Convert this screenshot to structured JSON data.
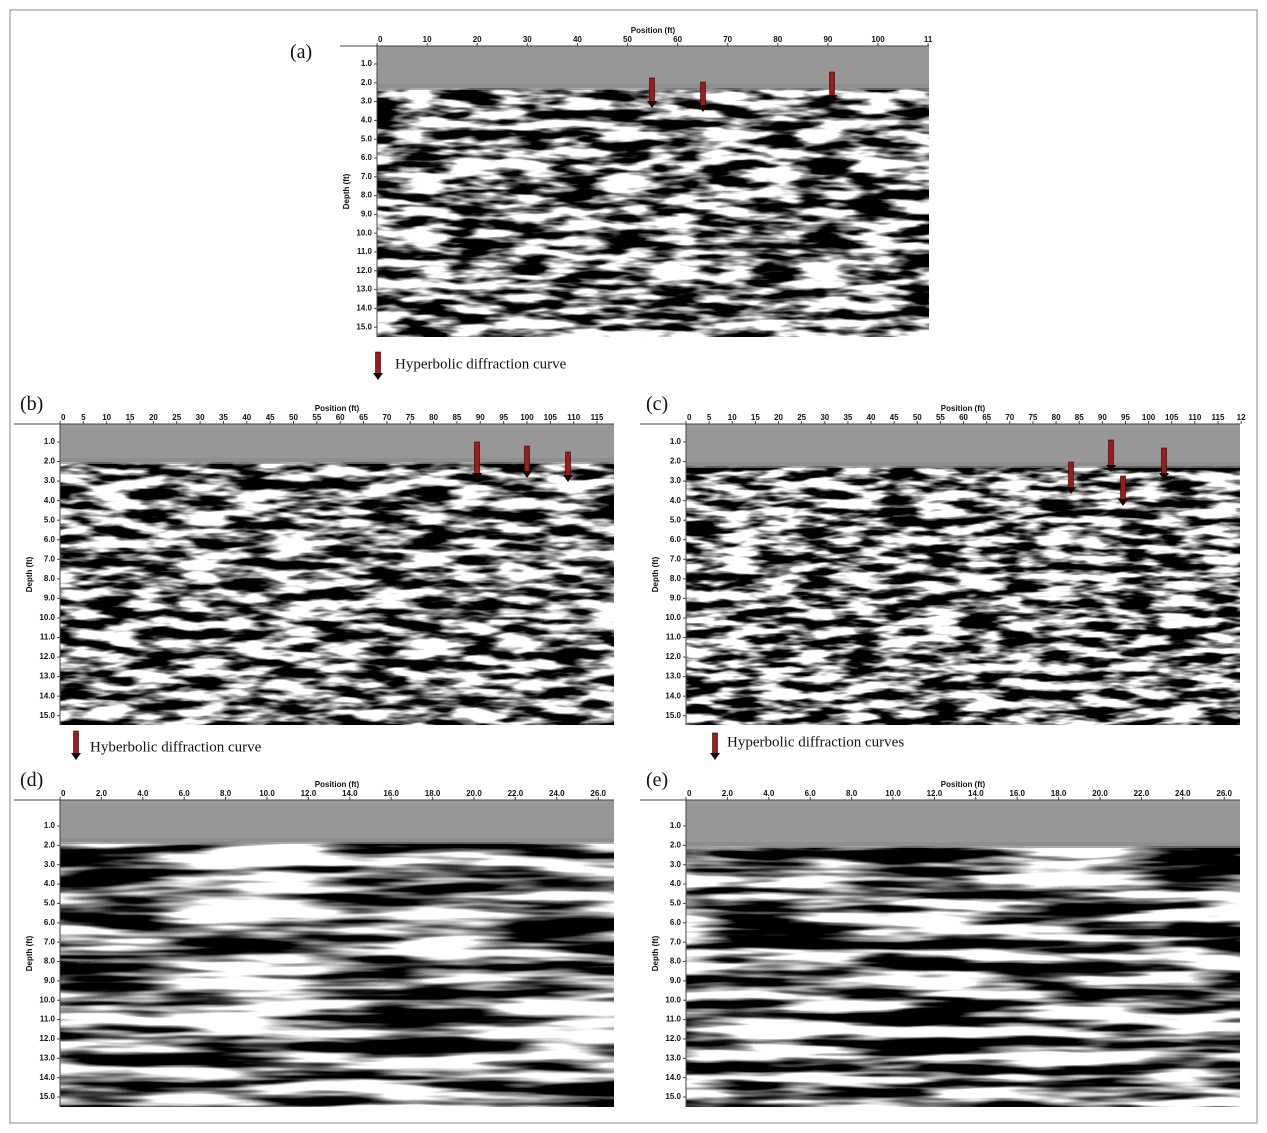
{
  "panels": [
    {
      "label": "(a)",
      "x_axis_title": "Position (ft)",
      "y_axis_title": "Depth (ft)",
      "x_ticks": [
        "0",
        "10",
        "20",
        "30",
        "40",
        "50",
        "60",
        "70",
        "80",
        "90",
        "100",
        "11"
      ],
      "y_ticks": [
        "1.0",
        "2.0",
        "3.0",
        "4.0",
        "5.0",
        "6.0",
        "7.0",
        "8.0",
        "9.0",
        "10.0",
        "11.0",
        "12.0",
        "13.0",
        "14.0",
        "15.0"
      ],
      "legend": "Hyperbolic diffraction curve"
    },
    {
      "label": "(b)",
      "x_axis_title": "Position (ft)",
      "y_axis_title": "Depth (ft)",
      "x_ticks": [
        "0",
        "5",
        "10",
        "15",
        "20",
        "25",
        "30",
        "35",
        "40",
        "45",
        "50",
        "55",
        "60",
        "65",
        "70",
        "75",
        "80",
        "85",
        "90",
        "95",
        "100",
        "105",
        "110",
        "115"
      ],
      "y_ticks": [
        "1.0",
        "2.0",
        "3.0",
        "4.0",
        "5.0",
        "6.0",
        "7.0",
        "8.0",
        "9.0",
        "10.0",
        "11.0",
        "12.0",
        "13.0",
        "14.0",
        "15.0"
      ],
      "legend": "Hyberbolic diffraction curve"
    },
    {
      "label": "(c)",
      "x_axis_title": "Position (ft)",
      "y_axis_title": "Depth (ft)",
      "x_ticks": [
        "0",
        "5",
        "10",
        "15",
        "20",
        "25",
        "30",
        "35",
        "40",
        "45",
        "50",
        "55",
        "60",
        "65",
        "70",
        "75",
        "80",
        "85",
        "90",
        "95",
        "100",
        "105",
        "110",
        "115",
        "12"
      ],
      "y_ticks": [
        "1.0",
        "2.0",
        "3.0",
        "4.0",
        "5.0",
        "6.0",
        "7.0",
        "8.0",
        "9.0",
        "10.0",
        "11.0",
        "12.0",
        "13.0",
        "14.0",
        "15.0"
      ],
      "legend": "Hyperbolic diffraction curves"
    },
    {
      "label": "(d)",
      "x_axis_title": "Position (ft)",
      "y_axis_title": "Depth (ft)",
      "x_ticks": [
        "0",
        "2.0",
        "4.0",
        "6.0",
        "8.0",
        "10.0",
        "12.0",
        "14.0",
        "16.0",
        "18.0",
        "20.0",
        "22.0",
        "24.0",
        "26.0"
      ],
      "y_ticks": [
        "1.0",
        "2.0",
        "3.0",
        "4.0",
        "5.0",
        "6.0",
        "7.0",
        "8.0",
        "9.0",
        "10.0",
        "11.0",
        "12.0",
        "13.0",
        "14.0",
        "15.0"
      ]
    },
    {
      "label": "(e)",
      "x_axis_title": "Position (ft)",
      "y_axis_title": "Depth (ft)",
      "x_ticks": [
        "0",
        "2.0",
        "4.0",
        "6.0",
        "8.0",
        "10.0",
        "12.0",
        "14.0",
        "16.0",
        "18.0",
        "20.0",
        "22.0",
        "24.0",
        "26.0"
      ],
      "y_ticks": [
        "1.0",
        "2.0",
        "3.0",
        "4.0",
        "5.0",
        "6.0",
        "7.0",
        "8.0",
        "9.0",
        "10.0",
        "11.0",
        "12.0",
        "13.0",
        "14.0",
        "15.0"
      ]
    }
  ]
}
